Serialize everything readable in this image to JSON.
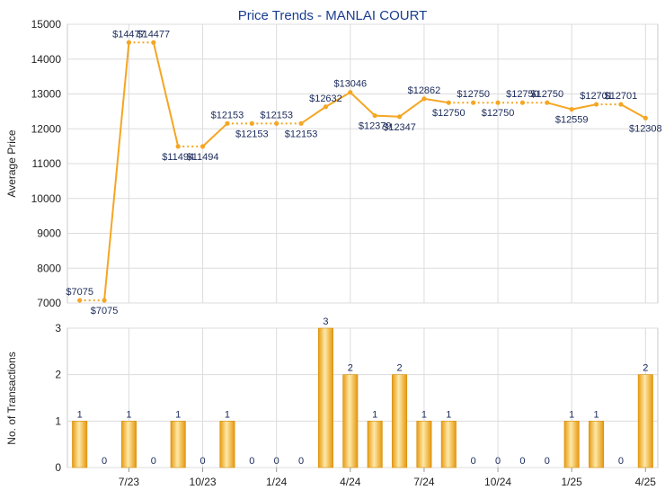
{
  "chart_data": [
    {
      "type": "line",
      "title": "Price Trends - MANLAI COURT",
      "ylabel": "Average Price",
      "ylim": [
        7000,
        15000
      ],
      "yticks": [
        7000,
        8000,
        9000,
        10000,
        11000,
        12000,
        13000,
        14000,
        15000
      ],
      "grid": true,
      "color": "#f5a623",
      "points": [
        {
          "i": 0,
          "y": 7075,
          "label": "$7075"
        },
        {
          "i": 1,
          "y": 7075,
          "label": "$7075"
        },
        {
          "i": 2,
          "y": 14477,
          "label": "$14477"
        },
        {
          "i": 3,
          "y": 14477,
          "label": "$14477"
        },
        {
          "i": 4,
          "y": 11494,
          "label": "$11494"
        },
        {
          "i": 5,
          "y": 11494,
          "label": "$11494"
        },
        {
          "i": 6,
          "y": 12153,
          "label": "$12153"
        },
        {
          "i": 7,
          "y": 12153,
          "label": "$12153"
        },
        {
          "i": 8,
          "y": 12153,
          "label": "$12153"
        },
        {
          "i": 9,
          "y": 12153,
          "label": "$12153"
        },
        {
          "i": 10,
          "y": 12632,
          "label": "$12632"
        },
        {
          "i": 11,
          "y": 13046,
          "label": "$13046"
        },
        {
          "i": 12,
          "y": 12379,
          "label": "$12379"
        },
        {
          "i": 13,
          "y": 12347,
          "label": "$12347"
        },
        {
          "i": 14,
          "y": 12862,
          "label": "$12862"
        },
        {
          "i": 15,
          "y": 12750,
          "label": "$12750"
        },
        {
          "i": 16,
          "y": 12750,
          "label": "$12750"
        },
        {
          "i": 17,
          "y": 12750,
          "label": "$12750"
        },
        {
          "i": 18,
          "y": 12750,
          "label": "$12750"
        },
        {
          "i": 19,
          "y": 12750,
          "label": "$12750"
        },
        {
          "i": 20,
          "y": 12559,
          "label": "$12559"
        },
        {
          "i": 21,
          "y": 12701,
          "label": "$12701"
        },
        {
          "i": 22,
          "y": 12701,
          "label": "$12701"
        },
        {
          "i": 23,
          "y": 12308,
          "label": "$12308"
        }
      ]
    },
    {
      "type": "bar",
      "ylabel": "No. of Transactions",
      "ylim": [
        0,
        3
      ],
      "yticks": [
        0,
        1,
        2,
        3
      ],
      "grid": true,
      "color": "#f5a623",
      "values": [
        1,
        0,
        1,
        0,
        1,
        0,
        1,
        0,
        0,
        0,
        3,
        2,
        1,
        2,
        1,
        1,
        0,
        0,
        0,
        0,
        1,
        1,
        0,
        2
      ],
      "xtick_labels": [
        {
          "i": 2,
          "label": "7/23"
        },
        {
          "i": 5,
          "label": "10/23"
        },
        {
          "i": 8,
          "label": "1/24"
        },
        {
          "i": 11,
          "label": "4/24"
        },
        {
          "i": 14,
          "label": "7/24"
        },
        {
          "i": 17,
          "label": "10/24"
        },
        {
          "i": 20,
          "label": "1/25"
        },
        {
          "i": 23,
          "label": "4/25"
        }
      ]
    }
  ]
}
